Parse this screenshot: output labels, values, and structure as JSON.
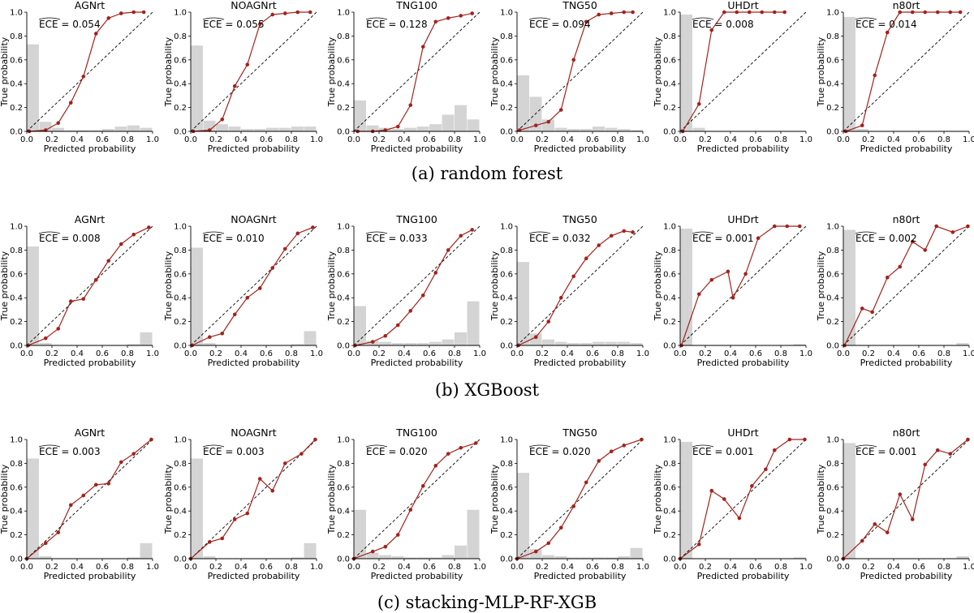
{
  "figure": {
    "row_captions": [
      "(a)  random forest",
      "(b)  XGBoost",
      "(c)  stacking-MLP-RF-XGB"
    ]
  },
  "style": {
    "curve_color": "#a3221c",
    "diagonal_color": "#000000",
    "hist_color": "#d4d4d4"
  },
  "chart_data": [
    {
      "type": "line",
      "row": 0,
      "title": "AGNrt",
      "xlabel": "Predicted probability",
      "ylabel": "True probability",
      "xlim": [
        0,
        1
      ],
      "ylim": [
        0,
        1
      ],
      "xticks": [
        "0.0",
        "0.2",
        "0.4",
        "0.6",
        "0.8",
        "1.0"
      ],
      "yticks": [
        "0.0",
        "0.2",
        "0.4",
        "0.6",
        "0.8",
        "1.0"
      ],
      "ece_label": "ECE = 0.054",
      "diagonal": true,
      "x": [
        0.02,
        0.15,
        0.25,
        0.35,
        0.45,
        0.55,
        0.65,
        0.75,
        0.85,
        0.93
      ],
      "y": [
        0.0,
        0.01,
        0.07,
        0.24,
        0.46,
        0.82,
        0.95,
        0.99,
        1.0,
        1.0
      ],
      "hist": [
        0.73,
        0.08,
        0.03,
        0.01,
        0.01,
        0.01,
        0.02,
        0.04,
        0.05,
        0.03
      ]
    },
    {
      "type": "line",
      "row": 0,
      "title": "NOAGNrt",
      "xlabel": "Predicted probability",
      "ylabel": "True probability",
      "xlim": [
        0,
        1
      ],
      "ylim": [
        0,
        1
      ],
      "xticks": [
        "0.0",
        "0.2",
        "0.4",
        "0.6",
        "0.8",
        "1.0"
      ],
      "yticks": [
        "0.0",
        "0.2",
        "0.4",
        "0.6",
        "0.8",
        "1.0"
      ],
      "ece_label": "ECE = 0.055",
      "diagonal": true,
      "x": [
        0.02,
        0.15,
        0.25,
        0.35,
        0.45,
        0.55,
        0.65,
        0.75,
        0.85,
        0.95
      ],
      "y": [
        0.0,
        0.01,
        0.1,
        0.38,
        0.56,
        0.9,
        0.98,
        0.99,
        1.0,
        1.0
      ],
      "hist": [
        0.72,
        0.09,
        0.06,
        0.04,
        0.02,
        0.02,
        0.03,
        0.03,
        0.04,
        0.04
      ]
    },
    {
      "type": "line",
      "row": 0,
      "title": "TNG100",
      "xlabel": "Predicted probability",
      "ylabel": "True probability",
      "xlim": [
        0,
        1
      ],
      "ylim": [
        0,
        1
      ],
      "xticks": [
        "0.0",
        "0.2",
        "0.4",
        "0.6",
        "0.8",
        "1.0"
      ],
      "yticks": [
        "0.0",
        "0.2",
        "0.4",
        "0.6",
        "0.8",
        "1.0"
      ],
      "ece_label": "ECE = 0.128",
      "diagonal": true,
      "x": [
        0.03,
        0.15,
        0.25,
        0.35,
        0.45,
        0.55,
        0.65,
        0.75,
        0.85,
        0.94
      ],
      "y": [
        0.0,
        0.0,
        0.01,
        0.04,
        0.22,
        0.71,
        0.92,
        0.95,
        0.97,
        0.99
      ],
      "hist": [
        0.26,
        0.05,
        0.03,
        0.02,
        0.03,
        0.04,
        0.06,
        0.14,
        0.22,
        0.1
      ]
    },
    {
      "type": "line",
      "row": 0,
      "title": "TNG50",
      "xlabel": "Predicted probability",
      "ylabel": "True probability",
      "xlim": [
        0,
        1
      ],
      "ylim": [
        0,
        1
      ],
      "xticks": [
        "0.0",
        "0.2",
        "0.4",
        "0.6",
        "0.8",
        "1.0"
      ],
      "yticks": [
        "0.0",
        "0.2",
        "0.4",
        "0.6",
        "0.8",
        "1.0"
      ],
      "ece_label": "ECE = 0.094",
      "diagonal": true,
      "x": [
        0.02,
        0.15,
        0.25,
        0.35,
        0.45,
        0.55,
        0.65,
        0.75,
        0.85,
        0.92
      ],
      "y": [
        0.01,
        0.05,
        0.08,
        0.18,
        0.6,
        0.92,
        0.98,
        0.99,
        1.0,
        1.0
      ],
      "hist": [
        0.47,
        0.29,
        0.1,
        0.03,
        0.02,
        0.02,
        0.04,
        0.03,
        0.02,
        0.01
      ]
    },
    {
      "type": "line",
      "row": 0,
      "title": "UHDrt",
      "xlabel": "Predicted probability",
      "ylabel": "True probability",
      "xlim": [
        0,
        1
      ],
      "ylim": [
        0,
        1
      ],
      "xticks": [
        "0.0",
        "0.2",
        "0.4",
        "0.6",
        "0.8",
        "1.0"
      ],
      "yticks": [
        "0.0",
        "0.2",
        "0.4",
        "0.6",
        "0.8",
        "1.0"
      ],
      "ece_label": "ECE = 0.008",
      "diagonal": true,
      "x": [
        0.02,
        0.15,
        0.25,
        0.35,
        0.45,
        0.55,
        0.65,
        0.75,
        0.83
      ],
      "y": [
        0.0,
        0.23,
        0.85,
        1.0,
        1.0,
        1.0,
        1.0,
        1.0,
        1.0
      ],
      "hist": [
        0.98,
        0.03,
        0.0,
        0.0,
        0.0,
        0.0,
        0.0,
        0.0,
        0.0,
        0.0
      ]
    },
    {
      "type": "line",
      "row": 0,
      "title": "n80rt",
      "xlabel": "Predicted probability",
      "ylabel": "True probability",
      "xlim": [
        0,
        1
      ],
      "ylim": [
        0,
        1
      ],
      "xticks": [
        "0.0",
        "0.2",
        "0.4",
        "0.6",
        "0.8",
        "1.0"
      ],
      "yticks": [
        "0.0",
        "0.2",
        "0.4",
        "0.6",
        "0.8",
        "1.0"
      ],
      "ece_label": "ECE = 0.014",
      "diagonal": true,
      "x": [
        0.02,
        0.15,
        0.25,
        0.35,
        0.45,
        0.55,
        0.65,
        0.75,
        0.85,
        0.93
      ],
      "y": [
        0.0,
        0.05,
        0.47,
        0.83,
        1.0,
        1.0,
        1.0,
        1.0,
        1.0,
        1.0
      ],
      "hist": [
        0.96,
        0.02,
        0.0,
        0.0,
        0.0,
        0.0,
        0.0,
        0.0,
        0.0,
        0.0
      ]
    },
    {
      "type": "line",
      "row": 1,
      "title": "AGNrt",
      "xlabel": "Predicted probability",
      "ylabel": "True probability",
      "xlim": [
        0,
        1
      ],
      "ylim": [
        0,
        1
      ],
      "xticks": [
        "0.0",
        "0.2",
        "0.4",
        "0.6",
        "0.8",
        "1.0"
      ],
      "yticks": [
        "0.0",
        "0.2",
        "0.4",
        "0.6",
        "0.8",
        "1.0"
      ],
      "ece_label": "ECE = 0.008",
      "diagonal": true,
      "x": [
        0.01,
        0.15,
        0.25,
        0.35,
        0.45,
        0.55,
        0.65,
        0.75,
        0.85,
        0.97
      ],
      "y": [
        0.0,
        0.06,
        0.14,
        0.37,
        0.39,
        0.55,
        0.71,
        0.85,
        0.93,
        0.99
      ],
      "hist": [
        0.83,
        0.02,
        0.0,
        0.0,
        0.0,
        0.0,
        0.0,
        0.0,
        0.01,
        0.11
      ]
    },
    {
      "type": "line",
      "row": 1,
      "title": "NOAGNrt",
      "xlabel": "Predicted probability",
      "ylabel": "True probability",
      "xlim": [
        0,
        1
      ],
      "ylim": [
        0,
        1
      ],
      "xticks": [
        "0.0",
        "0.2",
        "0.4",
        "0.6",
        "0.8",
        "1.0"
      ],
      "yticks": [
        "0.0",
        "0.2",
        "0.4",
        "0.6",
        "0.8",
        "1.0"
      ],
      "ece_label": "ECE = 0.010",
      "diagonal": true,
      "x": [
        0.01,
        0.15,
        0.25,
        0.35,
        0.45,
        0.55,
        0.65,
        0.75,
        0.85,
        0.97
      ],
      "y": [
        0.0,
        0.07,
        0.1,
        0.26,
        0.4,
        0.48,
        0.65,
        0.81,
        0.94,
        0.99
      ],
      "hist": [
        0.82,
        0.02,
        0.0,
        0.0,
        0.0,
        0.0,
        0.0,
        0.0,
        0.01,
        0.12
      ]
    },
    {
      "type": "line",
      "row": 1,
      "title": "TNG100",
      "xlabel": "Predicted probability",
      "ylabel": "True probability",
      "xlim": [
        0,
        1
      ],
      "ylim": [
        0,
        1
      ],
      "xticks": [
        "0.0",
        "0.2",
        "0.4",
        "0.6",
        "0.8",
        "1.0"
      ],
      "yticks": [
        "0.0",
        "0.2",
        "0.4",
        "0.6",
        "0.8",
        "1.0"
      ],
      "ece_label": "ECE = 0.033",
      "diagonal": true,
      "x": [
        0.01,
        0.15,
        0.25,
        0.35,
        0.45,
        0.55,
        0.65,
        0.75,
        0.85,
        0.94
      ],
      "y": [
        0.0,
        0.03,
        0.08,
        0.17,
        0.29,
        0.42,
        0.61,
        0.8,
        0.92,
        0.97
      ],
      "hist": [
        0.33,
        0.04,
        0.03,
        0.02,
        0.02,
        0.02,
        0.03,
        0.05,
        0.11,
        0.37
      ]
    },
    {
      "type": "line",
      "row": 1,
      "title": "TNG50",
      "xlabel": "Predicted probability",
      "ylabel": "True probability",
      "xlim": [
        0,
        1
      ],
      "ylim": [
        0,
        1
      ],
      "xticks": [
        "0.0",
        "0.2",
        "0.4",
        "0.6",
        "0.8",
        "1.0"
      ],
      "yticks": [
        "0.0",
        "0.2",
        "0.4",
        "0.6",
        "0.8",
        "1.0"
      ],
      "ece_label": "ECE = 0.032",
      "diagonal": true,
      "x": [
        0.01,
        0.15,
        0.25,
        0.35,
        0.45,
        0.55,
        0.65,
        0.75,
        0.85,
        0.92
      ],
      "y": [
        0.0,
        0.07,
        0.2,
        0.4,
        0.58,
        0.73,
        0.84,
        0.92,
        0.96,
        0.95
      ],
      "hist": [
        0.7,
        0.1,
        0.05,
        0.03,
        0.02,
        0.02,
        0.03,
        0.03,
        0.03,
        0.02
      ]
    },
    {
      "type": "line",
      "row": 1,
      "title": "UHDrt",
      "xlabel": "Predicted probability",
      "ylabel": "True probability",
      "xlim": [
        0,
        1
      ],
      "ylim": [
        0,
        1
      ],
      "xticks": [
        "0.0",
        "0.2",
        "0.4",
        "0.6",
        "0.8",
        "1.0"
      ],
      "yticks": [
        "0.0",
        "0.2",
        "0.4",
        "0.6",
        "0.8",
        "1.0"
      ],
      "ece_label": "ECE = 0.001",
      "diagonal": true,
      "x": [
        0.01,
        0.15,
        0.25,
        0.38,
        0.42,
        0.52,
        0.62,
        0.75,
        0.85,
        0.95
      ],
      "y": [
        0.0,
        0.43,
        0.55,
        0.62,
        0.4,
        0.6,
        0.9,
        1.0,
        1.0,
        1.0
      ],
      "hist": [
        0.98,
        0.0,
        0.0,
        0.0,
        0.0,
        0.0,
        0.0,
        0.0,
        0.0,
        0.01
      ]
    },
    {
      "type": "line",
      "row": 1,
      "title": "n80rt",
      "xlabel": "Predicted probability",
      "ylabel": "True probability",
      "xlim": [
        0,
        1
      ],
      "ylim": [
        0,
        1
      ],
      "xticks": [
        "0.0",
        "0.2",
        "0.4",
        "0.6",
        "0.8",
        "1.0"
      ],
      "yticks": [
        "0.0",
        "0.2",
        "0.4",
        "0.6",
        "0.8",
        "1.0"
      ],
      "ece_label": "ECE = 0.002",
      "diagonal": true,
      "x": [
        0.01,
        0.15,
        0.23,
        0.35,
        0.45,
        0.55,
        0.65,
        0.74,
        0.87,
        0.99
      ],
      "y": [
        0.0,
        0.31,
        0.28,
        0.57,
        0.66,
        0.87,
        0.8,
        1.0,
        0.95,
        1.0
      ],
      "hist": [
        0.97,
        0.0,
        0.0,
        0.0,
        0.0,
        0.0,
        0.0,
        0.0,
        0.0,
        0.02
      ]
    },
    {
      "type": "line",
      "row": 2,
      "title": "AGNrt",
      "xlabel": "Predicted probability",
      "ylabel": "True probability",
      "xlim": [
        0,
        1
      ],
      "ylim": [
        0,
        1
      ],
      "xticks": [
        "0.0",
        "0.2",
        "0.4",
        "0.6",
        "0.8",
        "1.0"
      ],
      "yticks": [
        "0.0",
        "0.2",
        "0.4",
        "0.6",
        "0.8",
        "1.0"
      ],
      "ece_label": "ECE = 0.003",
      "diagonal": true,
      "x": [
        0.0,
        0.15,
        0.25,
        0.35,
        0.45,
        0.55,
        0.65,
        0.75,
        0.85,
        0.99
      ],
      "y": [
        0.0,
        0.13,
        0.22,
        0.45,
        0.53,
        0.62,
        0.63,
        0.81,
        0.88,
        1.0
      ],
      "hist": [
        0.84,
        0.02,
        0.0,
        0.0,
        0.0,
        0.0,
        0.0,
        0.0,
        0.01,
        0.13
      ]
    },
    {
      "type": "line",
      "row": 2,
      "title": "NOAGNrt",
      "xlabel": "Predicted probability",
      "ylabel": "True probability",
      "xlim": [
        0,
        1
      ],
      "ylim": [
        0,
        1
      ],
      "xticks": [
        "0.0",
        "0.2",
        "0.4",
        "0.6",
        "0.8",
        "1.0"
      ],
      "yticks": [
        "0.0",
        "0.2",
        "0.4",
        "0.6",
        "0.8",
        "1.0"
      ],
      "ece_label": "ECE = 0.003",
      "diagonal": true,
      "x": [
        0.0,
        0.15,
        0.25,
        0.35,
        0.45,
        0.55,
        0.65,
        0.75,
        0.88,
        0.99
      ],
      "y": [
        0.0,
        0.14,
        0.17,
        0.33,
        0.38,
        0.67,
        0.57,
        0.8,
        0.88,
        1.0
      ],
      "hist": [
        0.84,
        0.02,
        0.0,
        0.0,
        0.0,
        0.0,
        0.0,
        0.0,
        0.01,
        0.13
      ]
    },
    {
      "type": "line",
      "row": 2,
      "title": "TNG100",
      "xlabel": "Predicted probability",
      "ylabel": "True probability",
      "xlim": [
        0,
        1
      ],
      "ylim": [
        0,
        1
      ],
      "xticks": [
        "0.0",
        "0.2",
        "0.4",
        "0.6",
        "0.8",
        "1.0"
      ],
      "yticks": [
        "0.0",
        "0.2",
        "0.4",
        "0.6",
        "0.8",
        "1.0"
      ],
      "ece_label": "ECE = 0.020",
      "diagonal": true,
      "x": [
        0.0,
        0.15,
        0.25,
        0.35,
        0.45,
        0.55,
        0.65,
        0.75,
        0.85,
        0.97
      ],
      "y": [
        0.0,
        0.06,
        0.1,
        0.2,
        0.41,
        0.61,
        0.78,
        0.88,
        0.93,
        0.97
      ],
      "hist": [
        0.41,
        0.05,
        0.03,
        0.02,
        0.01,
        0.01,
        0.01,
        0.03,
        0.11,
        0.41
      ]
    },
    {
      "type": "line",
      "row": 2,
      "title": "TNG50",
      "xlabel": "Predicted probability",
      "ylabel": "True probability",
      "xlim": [
        0,
        1
      ],
      "ylim": [
        0,
        1
      ],
      "xticks": [
        "0.0",
        "0.2",
        "0.4",
        "0.6",
        "0.8",
        "1.0"
      ],
      "yticks": [
        "0.0",
        "0.2",
        "0.4",
        "0.6",
        "0.8",
        "1.0"
      ],
      "ece_label": "ECE = 0.020",
      "diagonal": true,
      "x": [
        0.0,
        0.15,
        0.25,
        0.35,
        0.45,
        0.55,
        0.65,
        0.75,
        0.85,
        0.99
      ],
      "y": [
        0.0,
        0.06,
        0.13,
        0.26,
        0.44,
        0.64,
        0.82,
        0.9,
        0.95,
        1.0
      ],
      "hist": [
        0.72,
        0.08,
        0.03,
        0.02,
        0.01,
        0.01,
        0.01,
        0.01,
        0.02,
        0.09
      ]
    },
    {
      "type": "line",
      "row": 2,
      "title": "UHDrt",
      "xlabel": "Predicted probability",
      "ylabel": "True probability",
      "xlim": [
        0,
        1
      ],
      "ylim": [
        0,
        1
      ],
      "xticks": [
        "0.0",
        "0.2",
        "0.4",
        "0.6",
        "0.8",
        "1.0"
      ],
      "yticks": [
        "0.0",
        "0.2",
        "0.4",
        "0.6",
        "0.8",
        "1.0"
      ],
      "ece_label": "ECE = 0.001",
      "diagonal": true,
      "x": [
        0.0,
        0.15,
        0.25,
        0.35,
        0.47,
        0.57,
        0.68,
        0.75,
        0.87,
        0.99
      ],
      "y": [
        0.0,
        0.12,
        0.57,
        0.5,
        0.34,
        0.61,
        0.75,
        0.91,
        1.0,
        1.0
      ],
      "hist": [
        0.98,
        0.0,
        0.0,
        0.0,
        0.0,
        0.0,
        0.0,
        0.0,
        0.0,
        0.01
      ]
    },
    {
      "type": "line",
      "row": 2,
      "title": "n80rt",
      "xlabel": "Predicted probability",
      "ylabel": "True probability",
      "xlim": [
        0,
        1
      ],
      "ylim": [
        0,
        1
      ],
      "xticks": [
        "0.0",
        "0.2",
        "0.4",
        "0.6",
        "0.8",
        "1.0"
      ],
      "yticks": [
        "0.0",
        "0.2",
        "0.4",
        "0.6",
        "0.8",
        "1.0"
      ],
      "ece_label": "ECE = 0.001",
      "diagonal": true,
      "x": [
        0.0,
        0.15,
        0.25,
        0.35,
        0.45,
        0.55,
        0.65,
        0.75,
        0.85,
        0.99
      ],
      "y": [
        0.0,
        0.15,
        0.29,
        0.22,
        0.54,
        0.33,
        0.79,
        0.91,
        0.88,
        1.0
      ],
      "hist": [
        0.97,
        0.0,
        0.0,
        0.0,
        0.0,
        0.0,
        0.0,
        0.0,
        0.0,
        0.02
      ]
    }
  ]
}
